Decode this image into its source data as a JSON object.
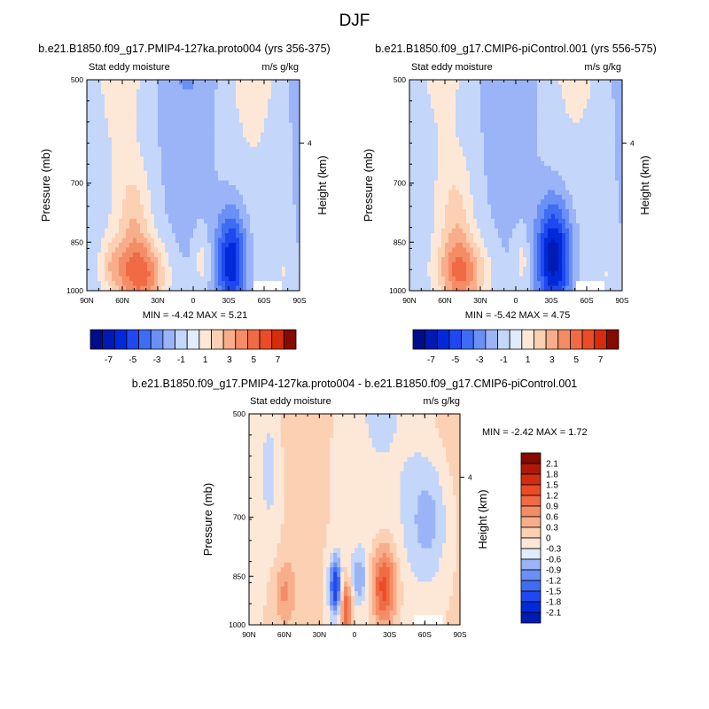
{
  "title": "DJF",
  "colors": {
    "neg": [
      "#000d8a",
      "#001bb4",
      "#002ad9",
      "#1f48f0",
      "#3f6cf3",
      "#6b90f5",
      "#9ab4f7",
      "#c4d6f9",
      "#e0ebfb"
    ],
    "pos": [
      "#fde8d8",
      "#fbd0b3",
      "#f8ae8a",
      "#f48d66",
      "#f06b45",
      "#ec4c25",
      "#d42d0e",
      "#ae1a06",
      "#850b00"
    ],
    "box": "#000000"
  },
  "chart_data": [
    {
      "type": "heatmap",
      "title": "b.e21.B1850.f09_g17.PMIP4-127ka.proto004 (yrs 356-375)",
      "left_label": "Stat eddy moisture",
      "right_label": "m/s g/kg",
      "ylabel": "Pressure (mb)",
      "y2label": "Height (km)",
      "y_ticks": [
        "500",
        "700",
        "850",
        "1000"
      ],
      "y2_ticks": [
        "4"
      ],
      "x_ticks": [
        "90N",
        "60N",
        "30N",
        "0",
        "30S",
        "60S",
        "90S"
      ],
      "min_label": "MIN =  -4.42   MAX =   5.21",
      "colorbar_labels": [
        "-7",
        "-5",
        "-3",
        "-1",
        "1",
        "3",
        "5",
        "7"
      ],
      "levels": [
        -8,
        -7,
        -6,
        -5,
        -4,
        -3,
        -2,
        -1,
        0,
        1,
        2,
        3,
        4,
        5,
        6,
        7,
        8
      ],
      "min": -4.42,
      "max": 5.21
    },
    {
      "type": "heatmap",
      "title": "b.e21.B1850.f09_g17.CMIP6-piControl.001 (yrs 556-575)",
      "left_label": "Stat eddy moisture",
      "right_label": "m/s g/kg",
      "ylabel": "Pressure (mb)",
      "y2label": "Height (km)",
      "y_ticks": [
        "500",
        "700",
        "850",
        "1000"
      ],
      "y2_ticks": [
        "4"
      ],
      "x_ticks": [
        "90N",
        "60N",
        "30N",
        "0",
        "30S",
        "60S",
        "90S"
      ],
      "min_label": "MIN =  -5.42   MAX =   4.75",
      "colorbar_labels": [
        "-7",
        "-5",
        "-3",
        "-1",
        "1",
        "3",
        "5",
        "7"
      ],
      "levels": [
        -8,
        -7,
        -6,
        -5,
        -4,
        -3,
        -2,
        -1,
        0,
        1,
        2,
        3,
        4,
        5,
        6,
        7,
        8
      ],
      "min": -5.42,
      "max": 4.75
    },
    {
      "type": "heatmap",
      "title": "b.e21.B1850.f09_g17.PMIP4-127ka.proto004 - b.e21.B1850.f09_g17.CMIP6-piControl.001",
      "left_label": "Stat eddy moisture",
      "right_label": "m/s g/kg",
      "ylabel": "Pressure (mb)",
      "y2label": "Height (km)",
      "y_ticks": [
        "500",
        "700",
        "850",
        "1000"
      ],
      "y2_ticks": [
        "4"
      ],
      "x_ticks": [
        "90N",
        "60N",
        "30N",
        "0",
        "30S",
        "60S",
        "90S"
      ],
      "min_label": "MIN =  -2.42   MAX =    1.72",
      "colorbar_labels": [
        "2.1",
        "1.8",
        "1.5",
        "1.2",
        "0.9",
        "0.6",
        "0.3",
        "0",
        "-0.3",
        "-0.6",
        "-0.9",
        "-1.2",
        "-1.5",
        "-1.8",
        "-2.1"
      ],
      "levels": [
        -2.4,
        -2.1,
        -1.8,
        -1.5,
        -1.2,
        -0.9,
        -0.6,
        -0.3,
        0,
        0.3,
        0.6,
        0.9,
        1.2,
        1.5,
        1.8,
        2.1,
        2.4
      ],
      "min": -2.42,
      "max": 1.72
    }
  ]
}
